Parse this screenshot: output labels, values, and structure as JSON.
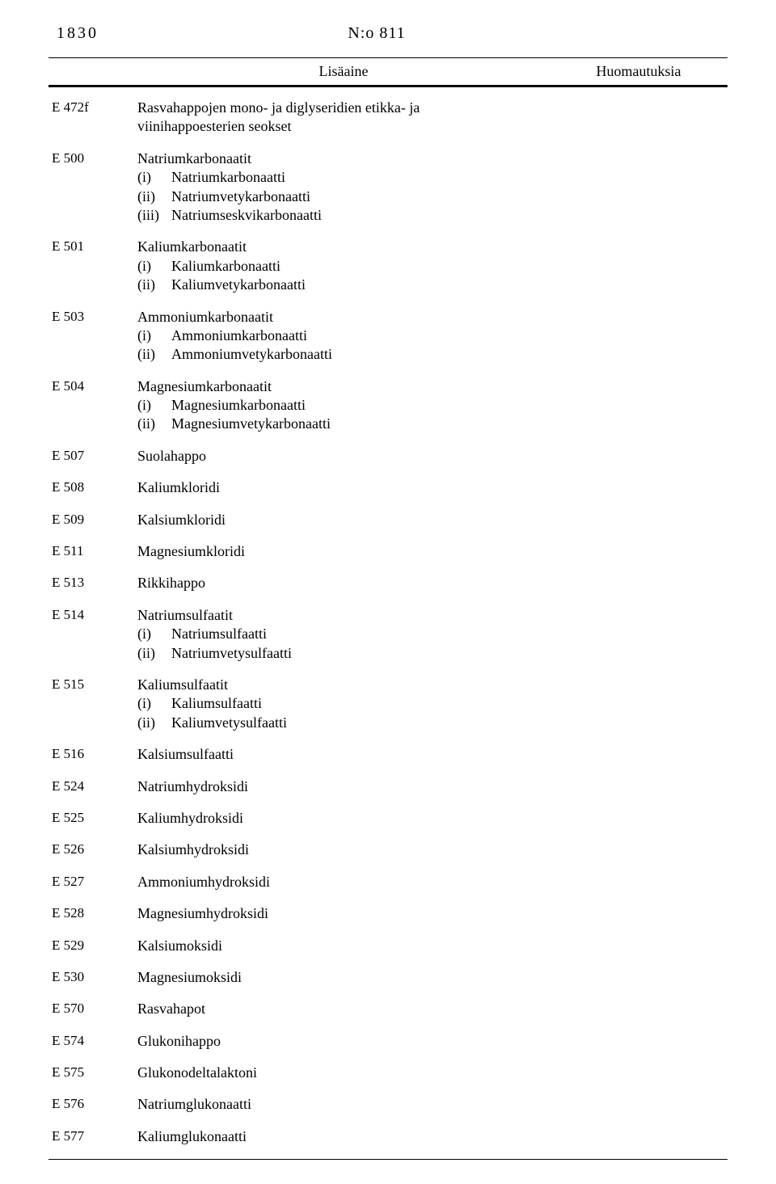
{
  "header": {
    "page_number": "1830",
    "doc_number": "N:o 811"
  },
  "table": {
    "columns": {
      "additive": "Lisäaine",
      "remarks": "Huomautuksia"
    },
    "rows": [
      {
        "code": "E 472f",
        "lines": [
          "Rasvahappojen mono- ja diglyseridien etikka- ja",
          "viinihappoesterien seokset"
        ]
      },
      {
        "code": "E 500",
        "title": "Natriumkarbonaatit",
        "subs": [
          {
            "num": "(i)",
            "text": "Natriumkarbonaatti"
          },
          {
            "num": "(ii)",
            "text": "Natriumvetykarbonaatti"
          },
          {
            "num": "(iii)",
            "text": "Natriumseskvikarbonaatti"
          }
        ]
      },
      {
        "code": "E 501",
        "title": "Kaliumkarbonaatit",
        "subs": [
          {
            "num": "(i)",
            "text": "Kaliumkarbonaatti"
          },
          {
            "num": "(ii)",
            "text": "Kaliumvetykarbonaatti"
          }
        ]
      },
      {
        "code": "E 503",
        "title": "Ammoniumkarbonaatit",
        "subs": [
          {
            "num": "(i)",
            "text": "Ammoniumkarbonaatti"
          },
          {
            "num": "(ii)",
            "text": "Ammoniumvetykarbonaatti"
          }
        ]
      },
      {
        "code": "E 504",
        "title": "Magnesiumkarbonaatit",
        "subs": [
          {
            "num": "(i)",
            "text": "Magnesiumkarbonaatti"
          },
          {
            "num": "(ii)",
            "text": "Magnesiumvetykarbonaatti"
          }
        ]
      },
      {
        "code": "E 507",
        "title": "Suolahappo"
      },
      {
        "code": "E 508",
        "title": "Kaliumkloridi"
      },
      {
        "code": "E 509",
        "title": "Kalsiumkloridi"
      },
      {
        "code": "E 511",
        "title": "Magnesiumkloridi"
      },
      {
        "code": "E 513",
        "title": "Rikkihappo"
      },
      {
        "code": "E 514",
        "title": "Natriumsulfaatit",
        "subs": [
          {
            "num": "(i)",
            "text": "Natriumsulfaatti"
          },
          {
            "num": "(ii)",
            "text": "Natriumvetysulfaatti"
          }
        ]
      },
      {
        "code": "E 515",
        "title": "Kaliumsulfaatit",
        "subs": [
          {
            "num": "(i)",
            "text": "Kaliumsulfaatti"
          },
          {
            "num": "(ii)",
            "text": "Kaliumvetysulfaatti"
          }
        ]
      },
      {
        "code": "E 516",
        "title": "Kalsiumsulfaatti"
      },
      {
        "code": "E 524",
        "title": "Natriumhydroksidi"
      },
      {
        "code": "E 525",
        "title": "Kaliumhydroksidi"
      },
      {
        "code": "E 526",
        "title": "Kalsiumhydroksidi"
      },
      {
        "code": "E 527",
        "title": "Ammoniumhydroksidi"
      },
      {
        "code": "E 528",
        "title": "Magnesiumhydroksidi"
      },
      {
        "code": "E 529",
        "title": "Kalsiumoksidi"
      },
      {
        "code": "E 530",
        "title": "Magnesiumoksidi"
      },
      {
        "code": "E 570",
        "title": "Rasvahapot"
      },
      {
        "code": "E 574",
        "title": "Glukonihappo"
      },
      {
        "code": "E 575",
        "title": "Glukonodeltalaktoni"
      },
      {
        "code": "E 576",
        "title": "Natriumglukonaatti"
      },
      {
        "code": "E 577",
        "title": "Kaliumglukonaatti"
      }
    ]
  }
}
